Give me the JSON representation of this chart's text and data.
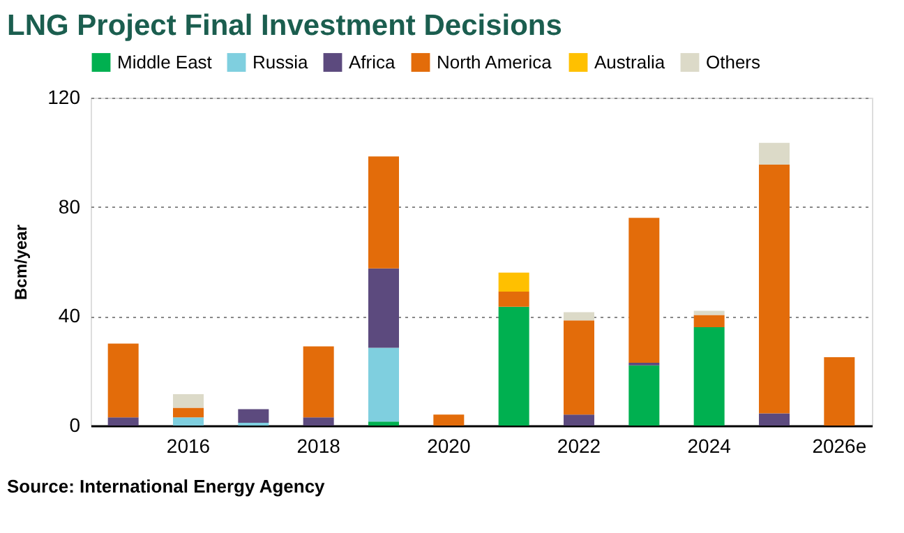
{
  "chart_data": {
    "type": "bar",
    "title": "LNG Project Final Investment Decisions",
    "ylabel": "Bcm/year",
    "categories": [
      null,
      "2016",
      null,
      "2018",
      null,
      "2020",
      null,
      "2022",
      null,
      "2024",
      null,
      "2026e"
    ],
    "stacked": true,
    "ylim": [
      0,
      120
    ],
    "yticks": [
      0,
      40,
      80,
      120
    ],
    "grid": "y",
    "legend": "top",
    "series": [
      {
        "name": "Middle East",
        "color": "#00b050",
        "values": [
          null,
          null,
          null,
          null,
          1.5,
          null,
          43.5,
          null,
          22,
          36,
          null,
          null
        ]
      },
      {
        "name": "Russia",
        "color": "#7fcfdf",
        "values": [
          null,
          3,
          1,
          null,
          27,
          null,
          null,
          null,
          null,
          null,
          null,
          null
        ]
      },
      {
        "name": "Africa",
        "color": "#5c4a7e",
        "values": [
          3,
          null,
          5,
          3,
          29,
          null,
          null,
          4,
          1,
          null,
          4.5,
          null
        ]
      },
      {
        "name": "North America",
        "color": "#e36c0a",
        "values": [
          27,
          3.5,
          null,
          26,
          41,
          4,
          5.5,
          34.5,
          53,
          4.5,
          91,
          25
        ]
      },
      {
        "name": "Australia",
        "color": "#ffc000",
        "values": [
          null,
          null,
          null,
          null,
          null,
          null,
          7,
          null,
          null,
          null,
          null,
          null
        ]
      },
      {
        "name": "Others",
        "color": "#dcdac8",
        "values": [
          null,
          5,
          null,
          null,
          null,
          null,
          null,
          3,
          null,
          1.5,
          8,
          null
        ]
      }
    ],
    "annotations": [
      "Source: International Energy Agency"
    ]
  }
}
